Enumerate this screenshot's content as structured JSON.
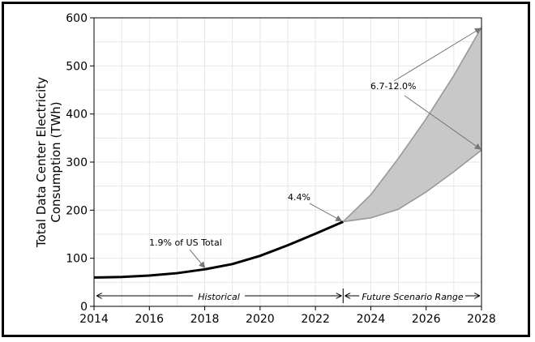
{
  "chart_data": {
    "type": "area",
    "xlabel": "",
    "ylabel_line1": "Total Data Center Electricity",
    "ylabel_line2": "Consumption (TWh)",
    "xlim": [
      2014,
      2028
    ],
    "ylim": [
      0,
      600
    ],
    "x_ticks": [
      2014,
      2016,
      2018,
      2020,
      2022,
      2024,
      2026,
      2028
    ],
    "y_ticks": [
      0,
      100,
      200,
      300,
      400,
      500,
      600
    ],
    "grid": true,
    "series": [
      {
        "type": "line",
        "x": [
          2014,
          2015,
          2016,
          2017,
          2018,
          2019,
          2020,
          2021,
          2022,
          2023
        ],
        "values": [
          60,
          61,
          64,
          69,
          77,
          88,
          105,
          127,
          151,
          176
        ]
      }
    ],
    "range": {
      "x": [
        2023,
        2024,
        2025,
        2026,
        2027,
        2028
      ],
      "low": [
        176,
        184,
        202,
        238,
        280,
        325
      ],
      "high": [
        176,
        232,
        308,
        390,
        480,
        580
      ]
    },
    "annotations": {
      "us_share_2018": "1.9% of US Total",
      "us_share_2023": "4.4%",
      "us_share_2028": "6.7-12.0%"
    },
    "periods": {
      "historical": "Historical",
      "future": "Future Scenario Range"
    }
  }
}
